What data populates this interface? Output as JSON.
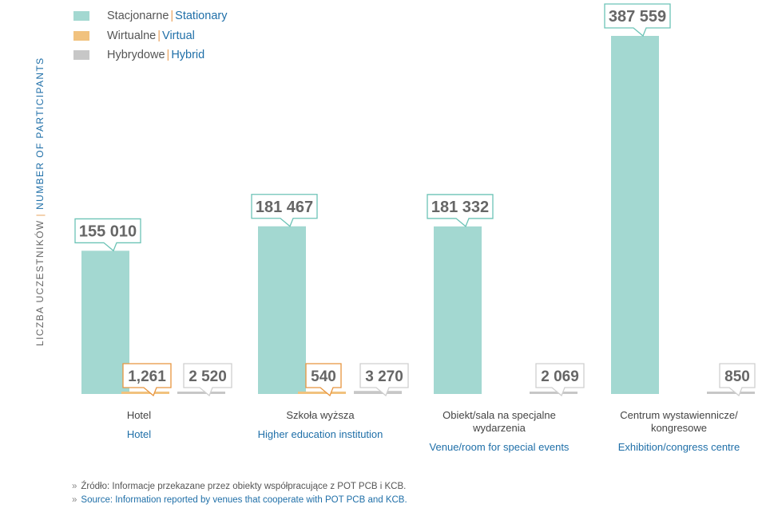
{
  "colors": {
    "stationary": "#a3d8d1",
    "virtual": "#f1c27e",
    "hybrid": "#c7c7c7",
    "stationary_border": "#6cc3b6",
    "virtual_border": "#e8953e",
    "hybrid_border": "#cfcfcf",
    "label_text": "#666666",
    "english": "#1f6fa8"
  },
  "legend": [
    {
      "pl": "Stacjonarne",
      "en": "Stationary"
    },
    {
      "pl": "Wirtualne",
      "en": "Virtual"
    },
    {
      "pl": "Hybrydowe",
      "en": "Hybrid"
    }
  ],
  "axis": {
    "pl": "LICZBA UCZESTNIKÓW",
    "en": "NUMBER OF PARTICIPANTS"
  },
  "categories": [
    {
      "pl": "Hotel",
      "en": "Hotel"
    },
    {
      "pl": "Szkoła wyższa",
      "en": "Higher education institution"
    },
    {
      "pl": "Obiekt/sala na specjalne wydarzenia",
      "en": "Venue/room for special events"
    },
    {
      "pl": "Centrum wystawiennicze/ kongresowe",
      "en": "Exhibition/congress centre"
    }
  ],
  "source": {
    "pl": "Źródło: Informacje przekazane przez obiekty współpracujące z POT PCB i KCB.",
    "en": "Source: Information reported by venues that cooperate with POT PCB and KCB."
  },
  "chart_data": {
    "type": "bar",
    "title": "",
    "xlabel": "",
    "ylabel": "LICZBA UCZESTNIKÓW | NUMBER OF PARTICIPANTS",
    "ylim": [
      0,
      400000
    ],
    "grid": false,
    "legend_position": "top-left",
    "categories": [
      "Hotel",
      "Szkoła wyższa",
      "Obiekt/sala na specjalne wydarzenia",
      "Centrum wystawiennicze/ kongresowe"
    ],
    "series": [
      {
        "name": "Stacjonarne | Stationary",
        "key": "stationary",
        "values": [
          155010,
          181467,
          181332,
          387559
        ],
        "labels": [
          "155 010",
          "181 467",
          "181 332",
          "387 559"
        ]
      },
      {
        "name": "Wirtualne | Virtual",
        "key": "virtual",
        "values": [
          1261,
          540,
          null,
          null
        ],
        "labels": [
          "1,261",
          "540",
          null,
          null
        ]
      },
      {
        "name": "Hybrydowe | Hybrid",
        "key": "hybrid",
        "values": [
          2520,
          3270,
          2069,
          850
        ],
        "labels": [
          "2 520",
          "3 270",
          "2 069",
          "850"
        ]
      }
    ]
  }
}
